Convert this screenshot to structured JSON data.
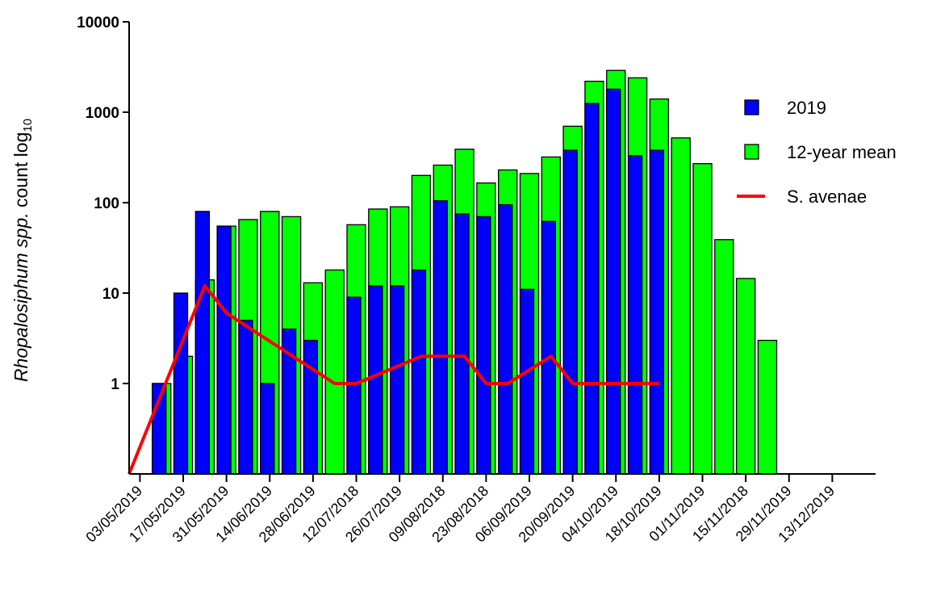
{
  "chart_data": {
    "type": "bar",
    "y_label": [
      "Rhopalosiphum spp.",
      " count log",
      "10"
    ],
    "y_log": true,
    "ylim": [
      0.1,
      10000
    ],
    "yticks": [
      1,
      10,
      100,
      1000,
      10000
    ],
    "xlim": [
      -0.5,
      34
    ],
    "xticks": [
      {
        "value": 0,
        "label": "03/05/2019"
      },
      {
        "value": 2,
        "label": "17/05/2019"
      },
      {
        "value": 4,
        "label": "31/05/2019"
      },
      {
        "value": 6,
        "label": "14/06/2019"
      },
      {
        "value": 8,
        "label": "28/06/2019"
      },
      {
        "value": 10,
        "label": "12/07/2018"
      },
      {
        "value": 12,
        "label": "26/07/2019"
      },
      {
        "value": 14,
        "label": "09/08/2018"
      },
      {
        "value": 16,
        "label": "23/08/2018"
      },
      {
        "value": 18,
        "label": "06/09/2019"
      },
      {
        "value": 20,
        "label": "20/09/2019"
      },
      {
        "value": 22,
        "label": "04/10/2019"
      },
      {
        "value": 24,
        "label": "18/10/2019"
      },
      {
        "value": 26,
        "label": "01/11/2019"
      },
      {
        "value": 28,
        "label": "15/11/2018"
      },
      {
        "value": 30,
        "label": "29/11/2019"
      },
      {
        "value": 32,
        "label": "13/12/2019"
      }
    ],
    "series": [
      {
        "name": "12-year mean",
        "kind": "bar",
        "color": "#00ff00",
        "x": [
          1,
          2,
          3,
          4,
          5,
          6,
          7,
          8,
          9,
          10,
          11,
          12,
          13,
          14,
          15,
          16,
          17,
          18,
          19,
          20,
          21,
          22,
          23,
          24,
          25,
          26,
          27,
          28,
          29
        ],
        "values": [
          1,
          2,
          14,
          55,
          65,
          80,
          70,
          13,
          18,
          57,
          85,
          90,
          200,
          260,
          390,
          165,
          230,
          210,
          320,
          700,
          2200,
          2900,
          2400,
          1400,
          520,
          270,
          39,
          14.5,
          3
        ]
      },
      {
        "name": "2019",
        "kind": "bar",
        "color": "#0000ff",
        "x": [
          1,
          2,
          3,
          4,
          5,
          6,
          7,
          8,
          9,
          10,
          11,
          12,
          13,
          14,
          15,
          16,
          17,
          18,
          19,
          20,
          21,
          22,
          23,
          24,
          25,
          26,
          27,
          28,
          29
        ],
        "values": [
          1,
          10,
          80,
          55,
          5,
          1,
          4,
          3,
          null,
          9,
          12,
          12,
          18,
          105,
          75,
          70,
          95,
          11,
          62,
          380,
          1250,
          1800,
          330,
          380,
          null,
          null,
          null,
          null,
          null
        ]
      },
      {
        "name": "S. avenae",
        "kind": "line",
        "color": "#ff0000",
        "x": [
          -0.5,
          3,
          4,
          9,
          10,
          13,
          15,
          16,
          17,
          19,
          20,
          24
        ],
        "values": [
          0.1,
          12,
          6,
          1,
          1,
          2,
          2,
          1,
          1,
          2,
          1,
          1
        ]
      }
    ],
    "legend_order": [
      1,
      0,
      2
    ]
  }
}
